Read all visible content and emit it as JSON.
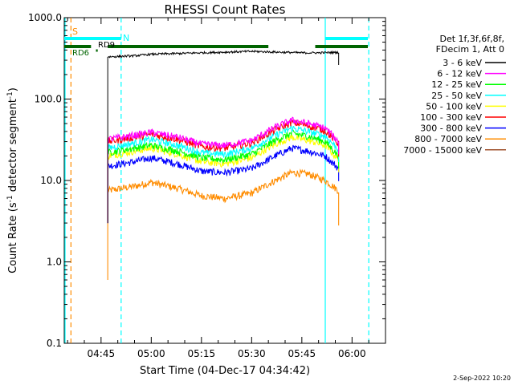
{
  "chart_data": {
    "type": "line",
    "title": "RHESSI Count Rates",
    "xlabel": "Start Time (04-Dec-17 04:34:42)",
    "ylabel_main": "Count Rate (s",
    "ylabel_sup": "-1",
    "ylabel_mid": " detector segment",
    "ylabel_sup2": "-1",
    "ylabel_end": ")",
    "y_scale": "log",
    "ylim": [
      0.1,
      1000
    ],
    "xlim": [
      "04:34",
      "06:10"
    ],
    "yticks": [
      {
        "value": 0.1,
        "label": "0.1"
      },
      {
        "value": 1,
        "label": "1.0"
      },
      {
        "value": 10,
        "label": "10.0"
      },
      {
        "value": 100,
        "label": "100.0"
      },
      {
        "value": 1000,
        "label": "1000.0"
      }
    ],
    "xticks": [
      {
        "value": "04:45",
        "label": "04:45"
      },
      {
        "value": "05:00",
        "label": "05:00"
      },
      {
        "value": "05:15",
        "label": "05:15"
      },
      {
        "value": "05:30",
        "label": "05:30"
      },
      {
        "value": "05:45",
        "label": "05:45"
      },
      {
        "value": "06:00",
        "label": "06:00"
      }
    ],
    "legend_header": [
      "Det 1f,3f,6f,8f,",
      "FDecim 1, Att 0"
    ],
    "legend_placement": "right",
    "series": [
      {
        "name": "3 - 6 keV",
        "color": "#000000",
        "x": [
          "04:47",
          "04:55",
          "05:00",
          "05:15",
          "05:30",
          "05:45",
          "05:50",
          "05:56"
        ],
        "y": [
          330,
          340,
          355,
          370,
          385,
          370,
          370,
          375
        ]
      },
      {
        "name": "6 - 12 keV",
        "color": "#ff00ff",
        "x": [
          "04:47",
          "04:55",
          "05:00",
          "05:08",
          "05:15",
          "05:22",
          "05:30",
          "05:37",
          "05:42",
          "05:47",
          "05:52",
          "05:56"
        ],
        "y": [
          32,
          36,
          39,
          34,
          28,
          27,
          31,
          45,
          55,
          50,
          44,
          30
        ]
      },
      {
        "name": "12 - 25 keV",
        "color": "#00ff00",
        "x": [
          "04:47",
          "04:55",
          "05:00",
          "05:08",
          "05:15",
          "05:22",
          "05:30",
          "05:37",
          "05:42",
          "05:47",
          "05:52",
          "05:56"
        ],
        "y": [
          22,
          25,
          27,
          23,
          19,
          18,
          21,
          31,
          38,
          35,
          30,
          20
        ]
      },
      {
        "name": "25 - 50 keV",
        "color": "#00ffff",
        "x": [
          "04:47",
          "04:55",
          "05:00",
          "05:08",
          "05:15",
          "05:22",
          "05:30",
          "05:37",
          "05:42",
          "05:47",
          "05:52",
          "05:56"
        ],
        "y": [
          25,
          29,
          32,
          27,
          22,
          21,
          25,
          36,
          44,
          40,
          35,
          24
        ]
      },
      {
        "name": "50 - 100 keV",
        "color": "#ffff00",
        "x": [
          "04:47",
          "04:55",
          "05:00",
          "05:08",
          "05:15",
          "05:22",
          "05:30",
          "05:37",
          "05:42",
          "05:47",
          "05:52",
          "05:56"
        ],
        "y": [
          20,
          23,
          25,
          21,
          17,
          16,
          19,
          28,
          34,
          31,
          27,
          18
        ]
      },
      {
        "name": "100 - 300 keV",
        "color": "#ff0000",
        "x": [
          "04:47",
          "04:55",
          "05:00",
          "05:08",
          "05:15",
          "05:22",
          "05:30",
          "05:37",
          "05:42",
          "05:47",
          "05:52",
          "05:56"
        ],
        "y": [
          30,
          34,
          37,
          32,
          26,
          25,
          29,
          42,
          52,
          47,
          41,
          28
        ]
      },
      {
        "name": "300 - 800 keV",
        "color": "#0000ff",
        "x": [
          "04:47",
          "04:55",
          "05:00",
          "05:08",
          "05:15",
          "05:22",
          "05:30",
          "05:37",
          "05:42",
          "05:47",
          "05:52",
          "05:56"
        ],
        "y": [
          15,
          17,
          19,
          16,
          13,
          12.5,
          14,
          20,
          25,
          23,
          20,
          14
        ]
      },
      {
        "name": "800 - 7000 keV",
        "color": "#ff8c00",
        "x": [
          "04:47",
          "04:55",
          "05:00",
          "05:08",
          "05:15",
          "05:22",
          "05:30",
          "05:37",
          "05:42",
          "05:47",
          "05:52",
          "05:56"
        ],
        "y": [
          7.5,
          8.5,
          9.5,
          8,
          6.5,
          6,
          7,
          10,
          12.5,
          12,
          10,
          7.5
        ]
      },
      {
        "name": "7000 - 15000 keV",
        "color": "#a0522d",
        "x": [],
        "y": []
      }
    ],
    "annotations": [
      {
        "text": "S",
        "color": "#ff8c00"
      },
      {
        "text": "N",
        "color": "#00ffff"
      },
      {
        "text": "RD6",
        "color": "#006400"
      },
      {
        "text": "RD9",
        "color": "#000000"
      }
    ],
    "vertical_lines": [
      {
        "time": "04:34",
        "color": "#00ffff",
        "style": "solid"
      },
      {
        "time": "04:36",
        "color": "#ff8c00",
        "style": "dashed"
      },
      {
        "time": "04:51",
        "color": "#00ffff",
        "style": "dashed"
      },
      {
        "time": "05:52",
        "color": "#00ffff",
        "style": "solid"
      },
      {
        "time": "06:05",
        "color": "#00ffff",
        "style": "dashed"
      }
    ],
    "grid": false
  },
  "footer": {
    "date": "2-Sep-2022 10:20"
  }
}
